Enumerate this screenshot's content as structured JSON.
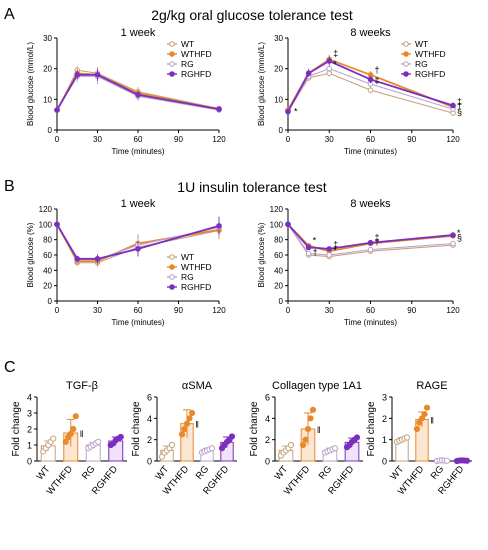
{
  "panels": [
    {
      "letter": "A",
      "title": "2g/kg oral glucose tolerance test"
    },
    {
      "letter": "B",
      "title": "1U insulin tolerance test"
    },
    {
      "letter": "C",
      "title": ""
    }
  ],
  "colors": {
    "WT": "#c8a27c",
    "WTHFD": "#e8892c",
    "RG": "#b9a3cf",
    "RGHFD": "#7b2fbf"
  },
  "chart_data": [
    {
      "type": "line",
      "panel": "A",
      "subtitle": "1 week",
      "xlabel": "Time (minutes)",
      "ylabel": "Blood glucose (mmol/L)",
      "xlim": [
        0,
        120
      ],
      "ylim": [
        0,
        30
      ],
      "xticks": [
        0,
        30,
        60,
        90,
        120
      ],
      "yticks": [
        0,
        10,
        20,
        30
      ],
      "legend": "top-right",
      "x": [
        0,
        15,
        30,
        60,
        120
      ],
      "series": [
        {
          "name": "WT",
          "values": [
            6.5,
            19.5,
            18.5,
            12.5,
            7.0
          ],
          "err": [
            0.6,
            1.5,
            2.0,
            1.5,
            0.6
          ]
        },
        {
          "name": "WTHFD",
          "values": [
            6.5,
            18.5,
            18.0,
            12.0,
            6.8
          ],
          "err": [
            0.6,
            1.5,
            2.0,
            1.2,
            0.6
          ]
        },
        {
          "name": "RG",
          "values": [
            6.5,
            17.5,
            17.5,
            11.0,
            6.5
          ],
          "err": [
            0.6,
            2.0,
            2.5,
            1.5,
            0.6
          ]
        },
        {
          "name": "RGHFD",
          "values": [
            6.5,
            18.0,
            18.0,
            11.5,
            6.8
          ],
          "err": [
            0.6,
            1.5,
            2.0,
            1.2,
            0.6
          ]
        }
      ],
      "annotations": []
    },
    {
      "type": "line",
      "panel": "A",
      "subtitle": "8 weeks",
      "xlabel": "Time (minutes)",
      "ylabel": "Blood glucose (mmol/L)",
      "xlim": [
        0,
        120
      ],
      "ylim": [
        0,
        30
      ],
      "xticks": [
        0,
        30,
        60,
        90,
        120
      ],
      "yticks": [
        0,
        10,
        20,
        30
      ],
      "legend": "top-right",
      "x": [
        0,
        15,
        30,
        60,
        120
      ],
      "series": [
        {
          "name": "WT",
          "values": [
            6.0,
            17.0,
            18.5,
            13.0,
            5.5
          ],
          "err": [
            0.5,
            1.0,
            1.0,
            1.0,
            0.5
          ]
        },
        {
          "name": "WTHFD",
          "values": [
            6.5,
            18.5,
            23.0,
            18.0,
            7.5
          ],
          "err": [
            0.5,
            1.5,
            1.5,
            1.2,
            0.5
          ]
        },
        {
          "name": "RG",
          "values": [
            6.0,
            17.5,
            20.0,
            15.0,
            6.8
          ],
          "err": [
            0.5,
            1.0,
            1.0,
            1.0,
            0.5
          ]
        },
        {
          "name": "RGHFD",
          "values": [
            6.0,
            18.5,
            22.5,
            16.5,
            8.0
          ],
          "err": [
            0.5,
            1.2,
            1.5,
            1.2,
            0.5
          ]
        }
      ],
      "annotations": [
        {
          "x": 0,
          "y": 6,
          "text": "*"
        },
        {
          "x": 30,
          "y": 25,
          "text": "‡"
        },
        {
          "x": 30,
          "y": 21.5,
          "text": "*"
        },
        {
          "x": 60,
          "y": 19.5,
          "text": "†"
        },
        {
          "x": 60,
          "y": 16.2,
          "text": "‡"
        },
        {
          "x": 120,
          "y": 9.3,
          "text": "‡"
        },
        {
          "x": 120,
          "y": 7.8,
          "text": "†"
        },
        {
          "x": 120,
          "y": 5.8,
          "text": "§"
        }
      ]
    },
    {
      "type": "line",
      "panel": "B",
      "subtitle": "1 week",
      "xlabel": "Time (minutes)",
      "ylabel": "Blood glucose (%)",
      "xlim": [
        0,
        120
      ],
      "ylim": [
        0,
        120
      ],
      "xticks": [
        0,
        30,
        60,
        90,
        120
      ],
      "yticks": [
        0,
        20,
        40,
        60,
        80,
        100,
        120
      ],
      "legend": "bottom-right",
      "x": [
        0,
        15,
        30,
        60,
        120
      ],
      "series": [
        {
          "name": "WT",
          "values": [
            100,
            50,
            50,
            70,
            92
          ],
          "err": [
            0,
            4,
            6,
            10,
            10
          ]
        },
        {
          "name": "WTHFD",
          "values": [
            100,
            52,
            52,
            75,
            93
          ],
          "err": [
            0,
            4,
            6,
            12,
            12
          ]
        },
        {
          "name": "RG",
          "values": [
            100,
            54,
            54,
            73,
            96
          ],
          "err": [
            0,
            4,
            6,
            10,
            12
          ]
        },
        {
          "name": "RGHFD",
          "values": [
            100,
            55,
            55,
            68,
            98
          ],
          "err": [
            0,
            4,
            6,
            10,
            12
          ]
        }
      ],
      "annotations": []
    },
    {
      "type": "line",
      "panel": "B",
      "subtitle": "8 weeks",
      "xlabel": "Time (minutes)",
      "ylabel": "Blood glucose (%)",
      "xlim": [
        0,
        120
      ],
      "ylim": [
        0,
        120
      ],
      "xticks": [
        0,
        30,
        60,
        90,
        120
      ],
      "yticks": [
        0,
        20,
        40,
        60,
        80,
        100,
        120
      ],
      "legend": "none",
      "x": [
        0,
        15,
        30,
        60,
        120
      ],
      "series": [
        {
          "name": "WT",
          "values": [
            100,
            60,
            58,
            65,
            73
          ],
          "err": [
            0,
            3,
            3,
            3,
            3
          ]
        },
        {
          "name": "WTHFD",
          "values": [
            100,
            72,
            65,
            75,
            85
          ],
          "err": [
            0,
            3,
            3,
            3,
            3
          ]
        },
        {
          "name": "RG",
          "values": [
            100,
            62,
            60,
            67,
            75
          ],
          "err": [
            0,
            3,
            3,
            3,
            3
          ]
        },
        {
          "name": "RGHFD",
          "values": [
            100,
            70,
            68,
            76,
            86
          ],
          "err": [
            0,
            3,
            3,
            3,
            3
          ]
        }
      ],
      "annotations": [
        {
          "x": 15,
          "y": 79,
          "text": "*"
        },
        {
          "x": 30,
          "y": 74,
          "text": "‡"
        },
        {
          "x": 30,
          "y": 66,
          "text": "*"
        },
        {
          "x": 15,
          "y": 63,
          "text": "†"
        },
        {
          "x": 60,
          "y": 83,
          "text": "‡"
        },
        {
          "x": 60,
          "y": 77,
          "text": "†"
        },
        {
          "x": 120,
          "y": 89,
          "text": "*"
        },
        {
          "x": 120,
          "y": 83,
          "text": "§"
        }
      ]
    },
    {
      "type": "bar",
      "panel": "C",
      "subtitle": "TGF-β",
      "ylabel": "Fold change",
      "categories": [
        "WT",
        "WTHFD",
        "RG",
        "RGHFD"
      ],
      "values": [
        0.95,
        1.75,
        1.0,
        1.25
      ],
      "err": [
        0.3,
        0.85,
        0.15,
        0.25
      ],
      "points": [
        [
          0.6,
          0.8,
          1.0,
          1.2,
          1.4
        ],
        [
          1.2,
          1.5,
          1.7,
          2.0,
          2.8
        ],
        [
          0.8,
          0.9,
          1.0,
          1.1,
          1.2
        ],
        [
          1.0,
          1.1,
          1.3,
          1.4,
          1.5
        ]
      ],
      "ylim": [
        0,
        4
      ],
      "yticks": [
        0,
        1,
        2,
        3,
        4
      ],
      "mark": "‖"
    },
    {
      "type": "bar",
      "panel": "C",
      "subtitle": "αSMA",
      "ylabel": "Fold change",
      "categories": [
        "WT",
        "WTHFD",
        "RG",
        "RGHFD"
      ],
      "values": [
        1.0,
        3.5,
        1.0,
        1.75
      ],
      "err": [
        0.4,
        1.3,
        0.2,
        0.5
      ],
      "points": [
        [
          0.4,
          0.8,
          1.0,
          1.2,
          1.5
        ],
        [
          2.5,
          3.0,
          3.5,
          4.0,
          4.5
        ],
        [
          0.8,
          0.9,
          1.0,
          1.1,
          1.2
        ],
        [
          1.2,
          1.5,
          1.8,
          2.0,
          2.3
        ]
      ],
      "ylim": [
        0,
        6
      ],
      "yticks": [
        0,
        2,
        4,
        6
      ],
      "mark": "‖"
    },
    {
      "type": "bar",
      "panel": "C",
      "subtitle": "Collagen type 1A1",
      "ylabel": "Fold change",
      "categories": [
        "WT",
        "WTHFD",
        "RG",
        "RGHFD"
      ],
      "values": [
        1.0,
        3.0,
        1.0,
        1.75
      ],
      "err": [
        0.4,
        1.5,
        0.2,
        0.4
      ],
      "points": [
        [
          0.5,
          0.8,
          1.0,
          1.2,
          1.5
        ],
        [
          1.5,
          2.0,
          3.0,
          4.0,
          4.8
        ],
        [
          0.8,
          0.9,
          1.0,
          1.1,
          1.2
        ],
        [
          1.3,
          1.5,
          1.8,
          2.0,
          2.2
        ]
      ],
      "ylim": [
        0,
        6
      ],
      "yticks": [
        0,
        2,
        4,
        6
      ],
      "mark": "‖"
    },
    {
      "type": "bar",
      "panel": "C",
      "subtitle": "RAGE",
      "ylabel": "Fold change",
      "categories": [
        "WT",
        "WTHFD",
        "RG",
        "RGHFD"
      ],
      "values": [
        1.0,
        1.95,
        0.02,
        0.02
      ],
      "err": [
        0.1,
        0.35,
        0.01,
        0.01
      ],
      "points": [
        [
          0.9,
          0.95,
          1.0,
          1.05,
          1.1
        ],
        [
          1.5,
          1.8,
          2.0,
          2.2,
          2.5
        ],
        [
          0.0,
          0.02,
          0.03,
          0.02,
          0.01
        ],
        [
          0.0,
          0.02,
          0.03,
          0.02,
          0.01
        ]
      ],
      "ylim": [
        0,
        3
      ],
      "yticks": [
        0,
        1,
        2,
        3
      ],
      "mark": "‖"
    }
  ]
}
